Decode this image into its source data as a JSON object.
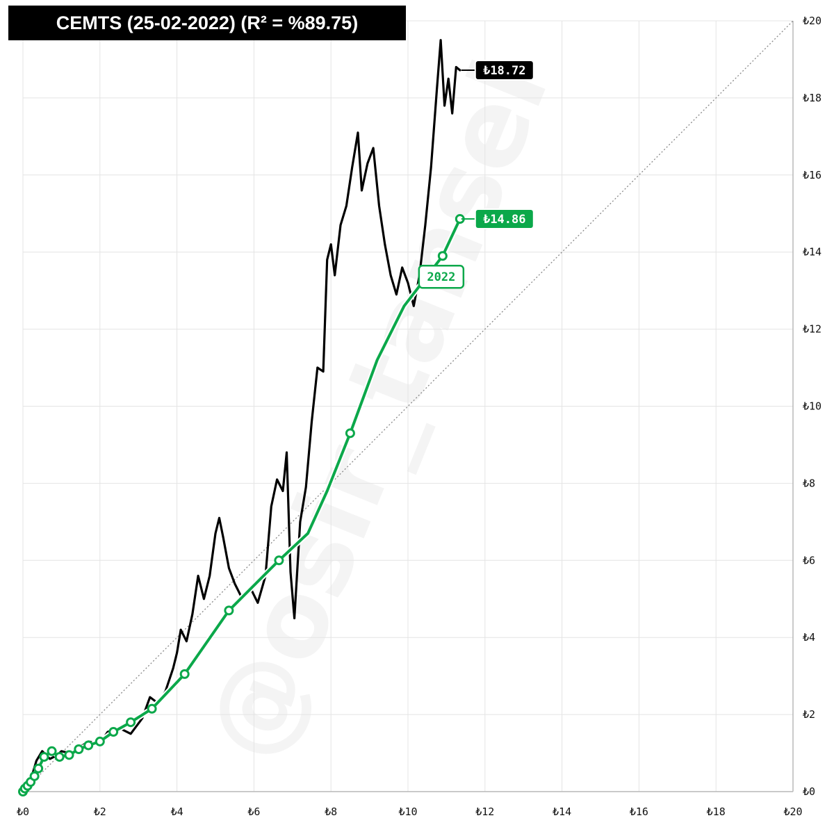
{
  "title": "CEMTS (25-02-2022) (R² = %89.75)",
  "watermark": "@osir_tansel",
  "chart_data": {
    "type": "line",
    "title": "CEMTS (25-02-2022) (R² = %89.75)",
    "xlim": [
      0,
      20
    ],
    "ylim": [
      0,
      20
    ],
    "x_ticks": [
      "₺0",
      "₺2",
      "₺4",
      "₺6",
      "₺8",
      "₺10",
      "₺12",
      "₺14",
      "₺16",
      "₺18",
      "₺20"
    ],
    "y_ticks": [
      "₺0",
      "₺2",
      "₺4",
      "₺6",
      "₺8",
      "₺10",
      "₺12",
      "₺14",
      "₺16",
      "₺18",
      "₺20"
    ],
    "grid": true,
    "reference_line": {
      "from": [
        0,
        0
      ],
      "to": [
        20,
        20
      ],
      "style": "dotted"
    },
    "series": [
      {
        "color": "#000000",
        "end_label": "₺18.72",
        "points": [
          [
            0,
            0
          ],
          [
            0.2,
            0.3
          ],
          [
            0.35,
            0.8
          ],
          [
            0.5,
            1.05
          ],
          [
            0.7,
            0.85
          ],
          [
            0.9,
            0.95
          ],
          [
            1.0,
            1.05
          ],
          [
            1.2,
            1.0
          ],
          [
            1.4,
            1.1
          ],
          [
            1.7,
            1.3
          ],
          [
            2.0,
            1.25
          ],
          [
            2.2,
            1.55
          ],
          [
            2.5,
            1.65
          ],
          [
            2.8,
            1.5
          ],
          [
            3.1,
            1.9
          ],
          [
            3.3,
            2.45
          ],
          [
            3.5,
            2.3
          ],
          [
            3.7,
            2.6
          ],
          [
            3.9,
            3.2
          ],
          [
            4.0,
            3.6
          ],
          [
            4.1,
            4.2
          ],
          [
            4.25,
            3.9
          ],
          [
            4.4,
            4.6
          ],
          [
            4.55,
            5.6
          ],
          [
            4.7,
            5.0
          ],
          [
            4.85,
            5.6
          ],
          [
            5.0,
            6.7
          ],
          [
            5.1,
            7.1
          ],
          [
            5.2,
            6.6
          ],
          [
            5.35,
            5.8
          ],
          [
            5.5,
            5.4
          ],
          [
            5.7,
            5.0
          ],
          [
            5.9,
            5.3
          ],
          [
            6.1,
            4.9
          ],
          [
            6.3,
            5.6
          ],
          [
            6.45,
            7.4
          ],
          [
            6.6,
            8.1
          ],
          [
            6.75,
            7.8
          ],
          [
            6.85,
            8.8
          ],
          [
            6.95,
            5.7
          ],
          [
            7.05,
            4.5
          ],
          [
            7.2,
            7.0
          ],
          [
            7.35,
            7.9
          ],
          [
            7.5,
            9.6
          ],
          [
            7.65,
            11.0
          ],
          [
            7.8,
            10.9
          ],
          [
            7.9,
            13.8
          ],
          [
            8.0,
            14.2
          ],
          [
            8.1,
            13.4
          ],
          [
            8.25,
            14.7
          ],
          [
            8.4,
            15.2
          ],
          [
            8.55,
            16.2
          ],
          [
            8.7,
            17.1
          ],
          [
            8.8,
            15.6
          ],
          [
            8.95,
            16.3
          ],
          [
            9.1,
            16.7
          ],
          [
            9.25,
            15.2
          ],
          [
            9.4,
            14.2
          ],
          [
            9.55,
            13.4
          ],
          [
            9.7,
            12.9
          ],
          [
            9.85,
            13.6
          ],
          [
            10.0,
            13.2
          ],
          [
            10.15,
            12.6
          ],
          [
            10.3,
            13.4
          ],
          [
            10.45,
            14.7
          ],
          [
            10.6,
            16.2
          ],
          [
            10.75,
            18.2
          ],
          [
            10.85,
            19.5
          ],
          [
            10.95,
            17.8
          ],
          [
            11.05,
            18.5
          ],
          [
            11.15,
            17.6
          ],
          [
            11.25,
            18.8
          ],
          [
            11.35,
            18.72
          ]
        ]
      },
      {
        "color": "#0ba84a",
        "end_label": "₺14.86",
        "year_label": "2022",
        "points": [
          [
            0,
            0
          ],
          [
            0.05,
            0.08
          ],
          [
            0.12,
            0.15
          ],
          [
            0.2,
            0.25
          ],
          [
            0.3,
            0.4
          ],
          [
            0.4,
            0.6
          ],
          [
            0.55,
            0.9
          ],
          [
            0.75,
            1.05
          ],
          [
            0.95,
            0.9
          ],
          [
            1.2,
            0.95
          ],
          [
            1.45,
            1.1
          ],
          [
            1.7,
            1.2
          ],
          [
            2.0,
            1.3
          ],
          [
            2.35,
            1.55
          ],
          [
            2.8,
            1.8
          ],
          [
            3.35,
            2.15
          ],
          [
            4.2,
            3.05
          ],
          [
            5.35,
            4.7
          ],
          [
            6.65,
            6.0
          ],
          [
            7.4,
            6.7
          ],
          [
            7.9,
            7.8
          ],
          [
            8.5,
            9.3
          ],
          [
            9.2,
            11.2
          ],
          [
            9.9,
            12.6
          ],
          [
            10.9,
            13.9
          ],
          [
            11.35,
            14.86
          ]
        ],
        "markers": [
          [
            0,
            0
          ],
          [
            0.05,
            0.08
          ],
          [
            0.12,
            0.15
          ],
          [
            0.2,
            0.25
          ],
          [
            0.3,
            0.4
          ],
          [
            0.4,
            0.6
          ],
          [
            0.55,
            0.9
          ],
          [
            0.75,
            1.05
          ],
          [
            0.95,
            0.9
          ],
          [
            1.2,
            0.95
          ],
          [
            1.45,
            1.1
          ],
          [
            1.7,
            1.2
          ],
          [
            2.0,
            1.3
          ],
          [
            2.35,
            1.55
          ],
          [
            2.8,
            1.8
          ],
          [
            3.35,
            2.15
          ],
          [
            4.2,
            3.05
          ],
          [
            5.35,
            4.7
          ],
          [
            6.65,
            6.0
          ],
          [
            8.5,
            9.3
          ],
          [
            10.9,
            13.9
          ],
          [
            11.35,
            14.86
          ]
        ]
      }
    ]
  }
}
